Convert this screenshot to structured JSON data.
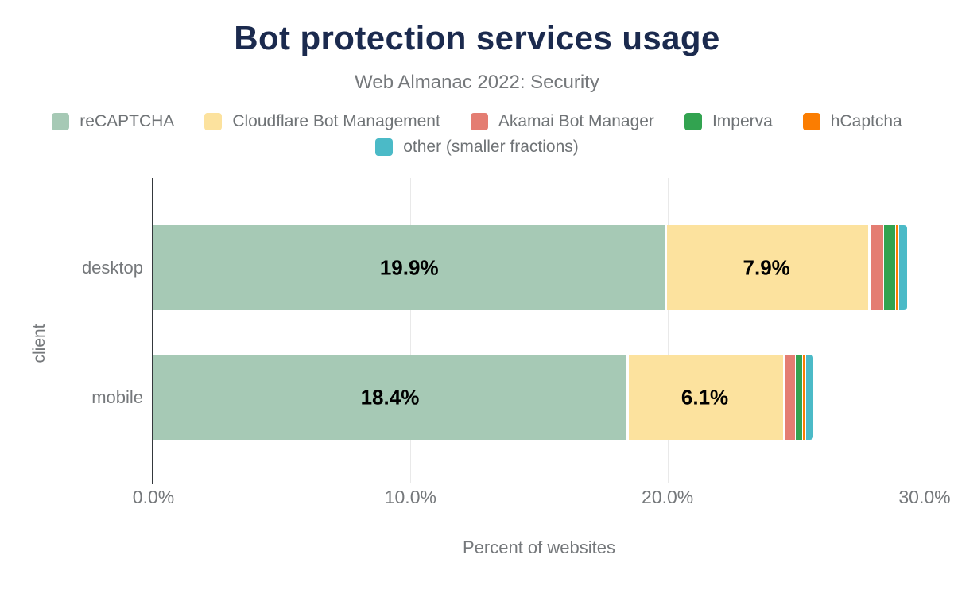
{
  "chart": {
    "title": "Bot protection services usage",
    "subtitle": "Web Almanac 2022: Security",
    "xlabel": "Percent of websites",
    "ylabel": "client"
  },
  "chart_data": {
    "type": "bar",
    "orientation": "horizontal",
    "stacked": true,
    "categories": [
      "desktop",
      "mobile"
    ],
    "series": [
      {
        "name": "reCAPTCHA",
        "color": "#a6c9b5",
        "values": [
          19.9,
          18.4
        ],
        "labels": [
          "19.9%",
          "18.4%"
        ]
      },
      {
        "name": "Cloudflare Bot Management",
        "color": "#fce29e",
        "values": [
          7.9,
          6.1
        ],
        "labels": [
          "7.9%",
          "6.1%"
        ]
      },
      {
        "name": "Akamai Bot Manager",
        "color": "#e47d72",
        "values": [
          0.6,
          0.45
        ],
        "labels": [
          "",
          ""
        ]
      },
      {
        "name": "Imperva",
        "color": "#32a350",
        "values": [
          0.45,
          0.3
        ],
        "labels": [
          "",
          ""
        ]
      },
      {
        "name": "hCaptcha",
        "color": "#fb7d01",
        "values": [
          0.12,
          0.12
        ],
        "labels": [
          "",
          ""
        ]
      },
      {
        "name": "other (smaller fractions)",
        "color": "#4bbac7",
        "values": [
          0.35,
          0.3
        ],
        "labels": [
          "",
          ""
        ]
      }
    ],
    "xlim": [
      0,
      30
    ],
    "x_ticks": [
      {
        "value": 0,
        "label": "0.0%"
      },
      {
        "value": 10,
        "label": "10.0%"
      },
      {
        "value": 20,
        "label": "20.0%"
      },
      {
        "value": 30,
        "label": "30.0%"
      }
    ],
    "grid": "vertical-only",
    "legend_position": "top-center"
  },
  "colors": {
    "title": "#1b2a4e",
    "muted_text": "#75787b",
    "axis_line": "#34383c",
    "gridline": "#e9e9e9",
    "bar_label": "#000000",
    "background": "#ffffff"
  }
}
